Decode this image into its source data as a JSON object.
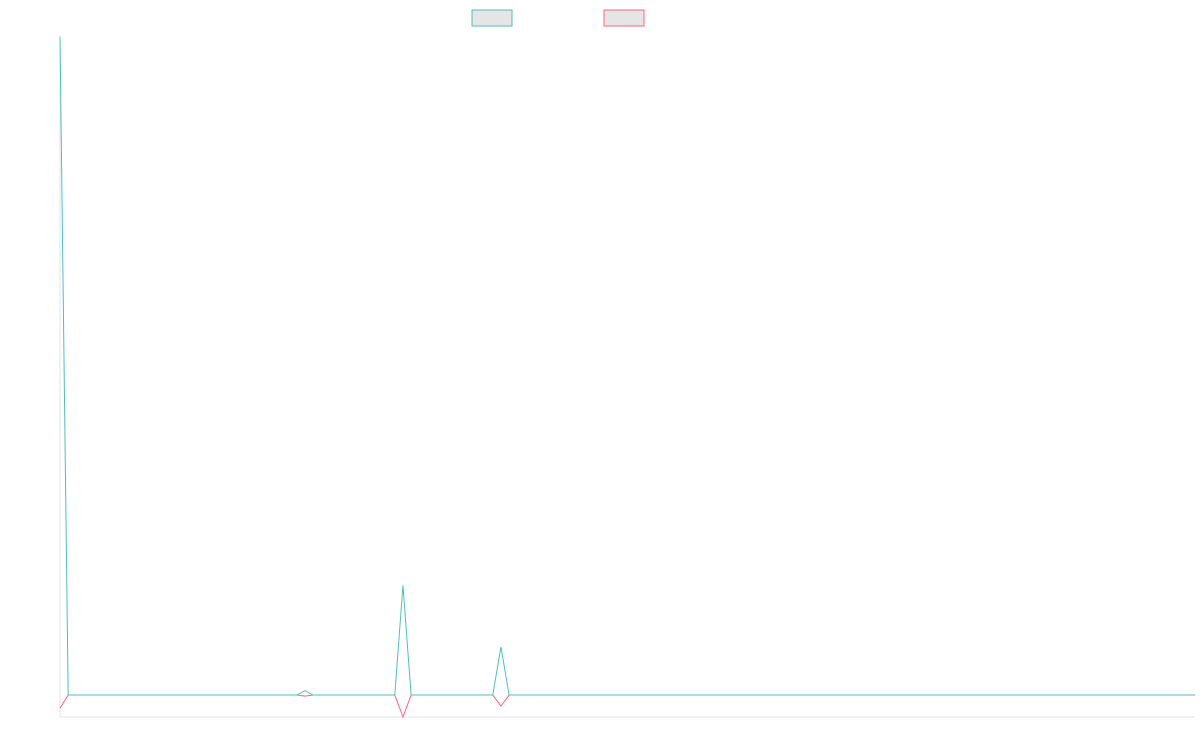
{
  "chart_data": {
    "type": "line",
    "title": "",
    "xlabel": "",
    "ylabel": "",
    "grid": false,
    "legend_position": "top-center",
    "x_count": 140,
    "ylim": [
      -1,
      30
    ],
    "series": [
      {
        "color": "#4bc0c0",
        "fill": "#e5e5e5",
        "values": [
          30,
          0,
          0,
          0,
          0,
          0,
          0,
          0,
          0,
          0,
          0,
          0,
          0,
          0,
          0,
          0,
          0,
          0,
          0,
          0,
          0,
          0,
          0,
          0,
          0,
          0,
          0,
          0,
          0,
          0,
          0.2,
          0,
          0,
          0,
          0,
          0,
          0,
          0,
          0,
          0,
          0,
          0,
          5,
          0,
          0,
          0,
          0,
          0,
          0,
          0,
          0,
          0,
          0,
          0,
          2.2,
          0,
          0,
          0,
          0,
          0,
          0,
          0,
          0,
          0,
          0,
          0,
          0,
          0,
          0,
          0,
          0,
          0,
          0,
          0,
          0,
          0,
          0,
          0,
          0,
          0,
          0,
          0,
          0,
          0,
          0,
          0,
          0,
          0,
          0,
          0,
          0,
          0,
          0,
          0,
          0,
          0,
          0,
          0,
          0,
          0,
          0,
          0,
          0,
          0,
          0,
          0,
          0,
          0,
          0,
          0,
          0,
          0,
          0,
          0,
          0,
          0,
          0,
          0,
          0,
          0,
          0,
          0,
          0,
          0,
          0,
          0,
          0,
          0,
          0,
          0,
          0,
          0,
          0,
          0,
          0,
          0,
          0,
          0,
          0,
          0
        ]
      },
      {
        "color": "#ff6384",
        "fill": "#e5e5e5",
        "values": [
          -0.6,
          0,
          0,
          0,
          0,
          0,
          0,
          0,
          0,
          0,
          0,
          0,
          0,
          0,
          0,
          0,
          0,
          0,
          0,
          0,
          0,
          0,
          0,
          0,
          0,
          0,
          0,
          0,
          0,
          0,
          -0.05,
          0,
          0,
          0,
          0,
          0,
          0,
          0,
          0,
          0,
          0,
          0,
          -1,
          0,
          0,
          0,
          0,
          0,
          0,
          0,
          0,
          0,
          0,
          0,
          -0.5,
          0,
          0,
          0,
          0,
          0,
          0,
          0,
          0,
          0,
          0,
          0,
          0,
          0,
          0,
          0,
          0,
          0,
          0,
          0,
          0,
          0,
          0,
          0,
          0,
          0,
          0,
          0,
          0,
          0,
          0,
          0,
          0,
          0,
          0,
          0,
          0,
          0,
          0,
          0,
          0,
          0,
          0,
          0,
          0,
          0,
          0,
          0,
          0,
          0,
          0,
          0,
          0,
          0,
          0,
          0,
          0,
          0,
          0,
          0,
          0,
          0,
          0,
          0,
          0,
          0,
          0,
          0,
          0,
          0,
          0,
          0,
          0,
          0,
          0,
          0,
          0,
          0,
          0,
          0,
          0,
          0,
          0,
          0,
          0,
          0
        ]
      }
    ]
  }
}
